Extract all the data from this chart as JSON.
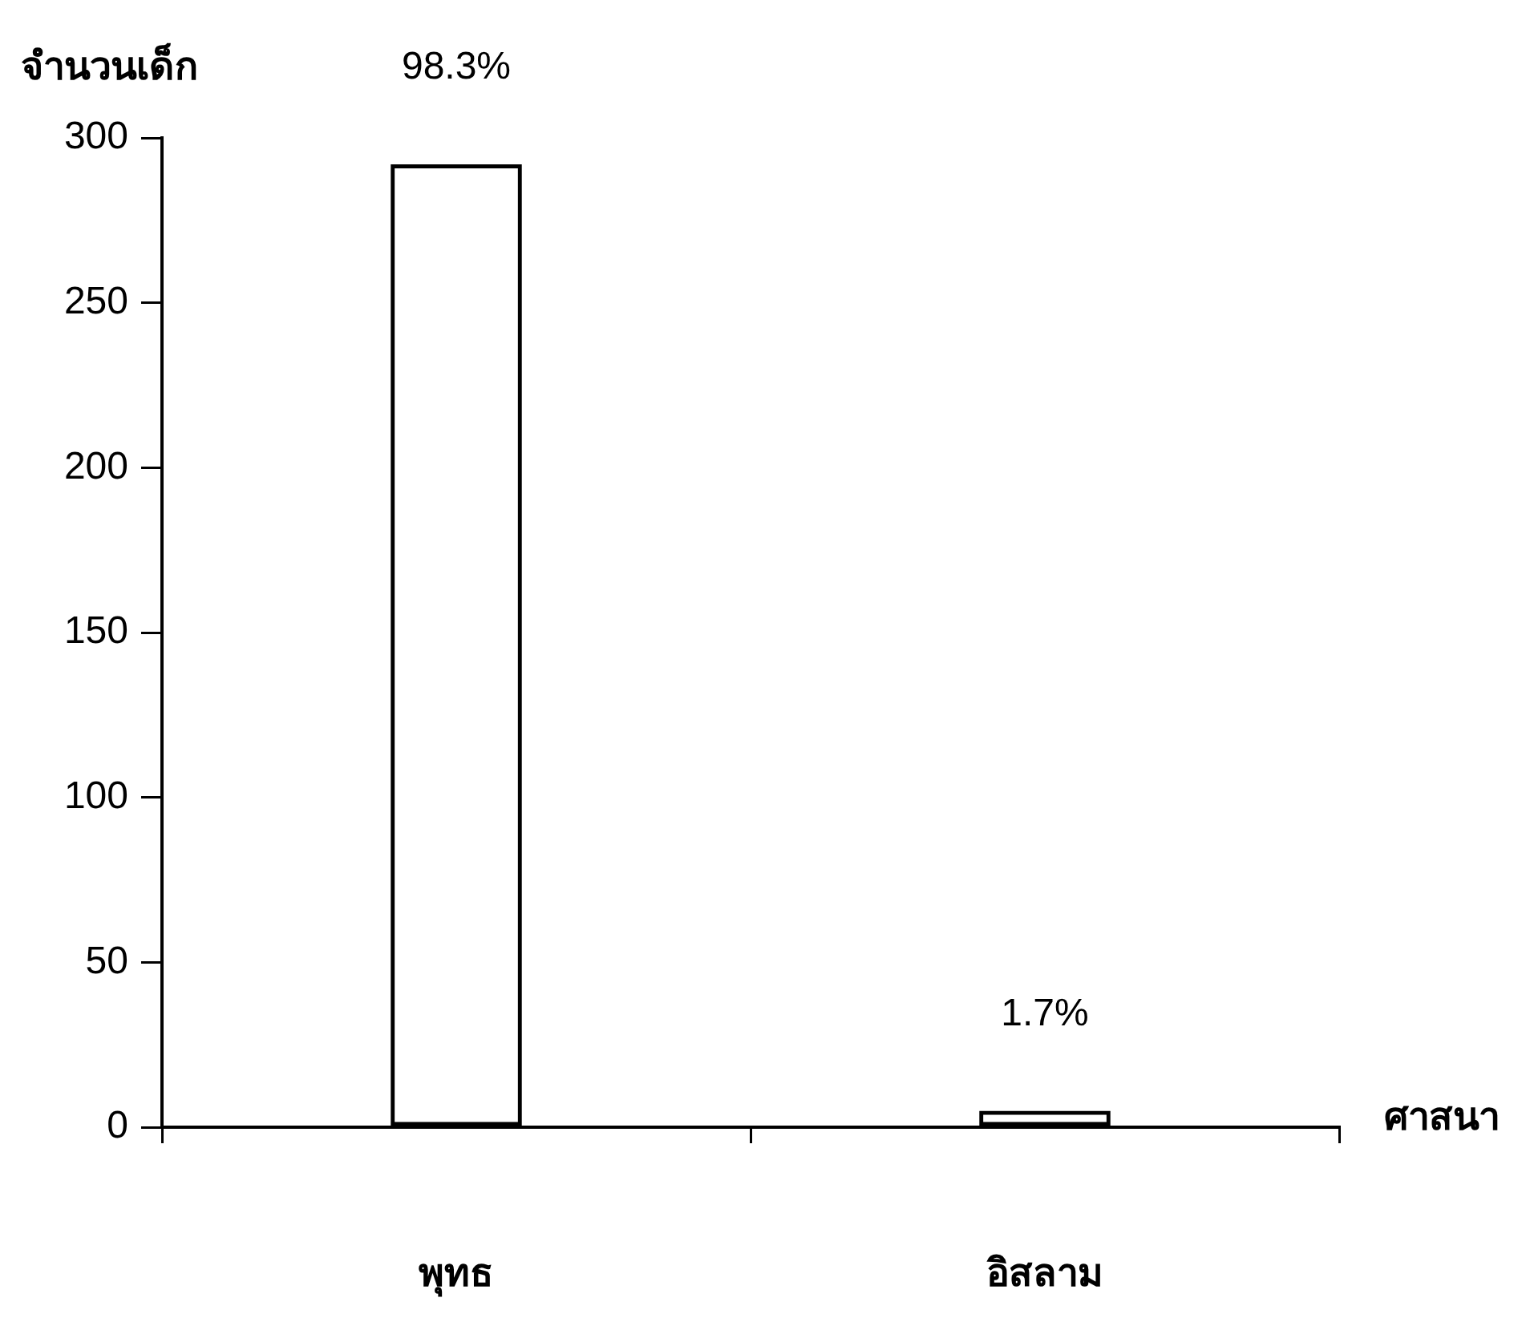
{
  "chart_data": {
    "type": "bar",
    "xlabel": "ศาสนา",
    "ylabel": "จำนวนเด็ก",
    "categories": [
      "พุทธ",
      "อิสลาม"
    ],
    "values": [
      292,
      5
    ],
    "color": "#000000",
    "annotations": [
      {
        "text": "98.3%",
        "x": "พุทธ",
        "y": 292
      },
      {
        "text": "1.7%",
        "x": "อิสลาม",
        "y": 5
      }
    ],
    "ylim": [
      0,
      300
    ],
    "yticks": [
      0,
      50,
      100,
      150,
      200,
      250,
      300
    ],
    "grid": false,
    "legend": false
  }
}
